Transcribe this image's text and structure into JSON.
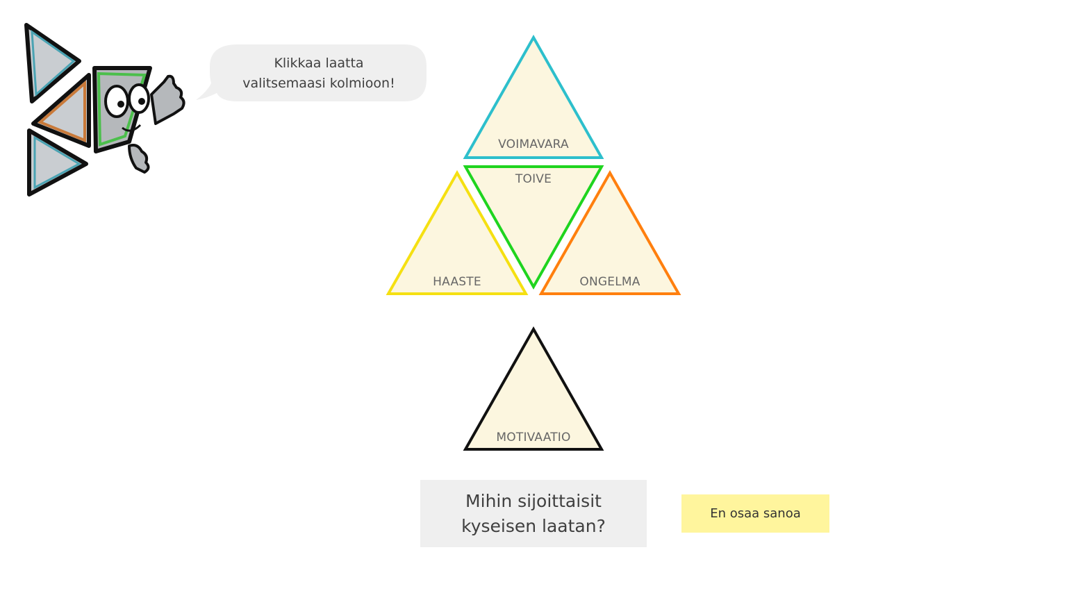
{
  "bubble": {
    "line1": "Klikkaa laatta",
    "line2": "valitsemaasi kolmioon!"
  },
  "triangles": {
    "voimavara": {
      "label": "VOIMAVARA",
      "stroke": "#2dbfcc",
      "fill": "#fcf6df"
    },
    "toive": {
      "label": "TOIVE",
      "stroke": "#1fd41f",
      "fill": "#fcf6df"
    },
    "haaste": {
      "label": "HAASTE",
      "stroke": "#f5e012",
      "fill": "#fcf6df"
    },
    "ongelma": {
      "label": "ONGELMA",
      "stroke": "#ff7f0e",
      "fill": "#fcf6df"
    },
    "motivaatio": {
      "label": "MOTIVAATIO",
      "stroke": "#111111",
      "fill": "#fcf6df"
    }
  },
  "question": {
    "line1": "Mihin sijoittaisit",
    "line2": "kyseisen laatan?"
  },
  "dunno_button": {
    "label": "En osaa sanoa",
    "color": "#fff59d"
  },
  "mascot": {
    "icon": "triangle-mascot-icon"
  }
}
